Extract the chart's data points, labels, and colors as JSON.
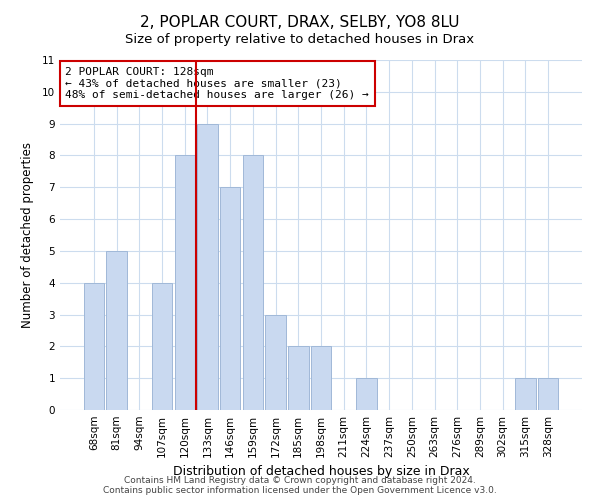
{
  "title": "2, POPLAR COURT, DRAX, SELBY, YO8 8LU",
  "subtitle": "Size of property relative to detached houses in Drax",
  "xlabel": "Distribution of detached houses by size in Drax",
  "ylabel": "Number of detached properties",
  "bar_labels": [
    "68sqm",
    "81sqm",
    "94sqm",
    "107sqm",
    "120sqm",
    "133sqm",
    "146sqm",
    "159sqm",
    "172sqm",
    "185sqm",
    "198sqm",
    "211sqm",
    "224sqm",
    "237sqm",
    "250sqm",
    "263sqm",
    "276sqm",
    "289sqm",
    "302sqm",
    "315sqm",
    "328sqm"
  ],
  "bar_values": [
    4,
    5,
    0,
    4,
    8,
    9,
    7,
    8,
    3,
    2,
    2,
    0,
    1,
    0,
    0,
    0,
    0,
    0,
    0,
    1,
    1
  ],
  "bar_color": "#c9d9f0",
  "bar_edge_color": "#a0b8d8",
  "vline_x_index": 5,
  "vline_color": "#cc0000",
  "ylim": [
    0,
    11
  ],
  "yticks": [
    0,
    1,
    2,
    3,
    4,
    5,
    6,
    7,
    8,
    9,
    10,
    11
  ],
  "annotation_title": "2 POPLAR COURT: 128sqm",
  "annotation_line1": "← 43% of detached houses are smaller (23)",
  "annotation_line2": "48% of semi-detached houses are larger (26) →",
  "footer_line1": "Contains HM Land Registry data © Crown copyright and database right 2024.",
  "footer_line2": "Contains public sector information licensed under the Open Government Licence v3.0.",
  "title_fontsize": 11,
  "subtitle_fontsize": 9.5,
  "xlabel_fontsize": 9,
  "ylabel_fontsize": 8.5,
  "tick_fontsize": 7.5,
  "annotation_fontsize": 8,
  "footer_fontsize": 6.5,
  "grid_color": "#ccdcee"
}
